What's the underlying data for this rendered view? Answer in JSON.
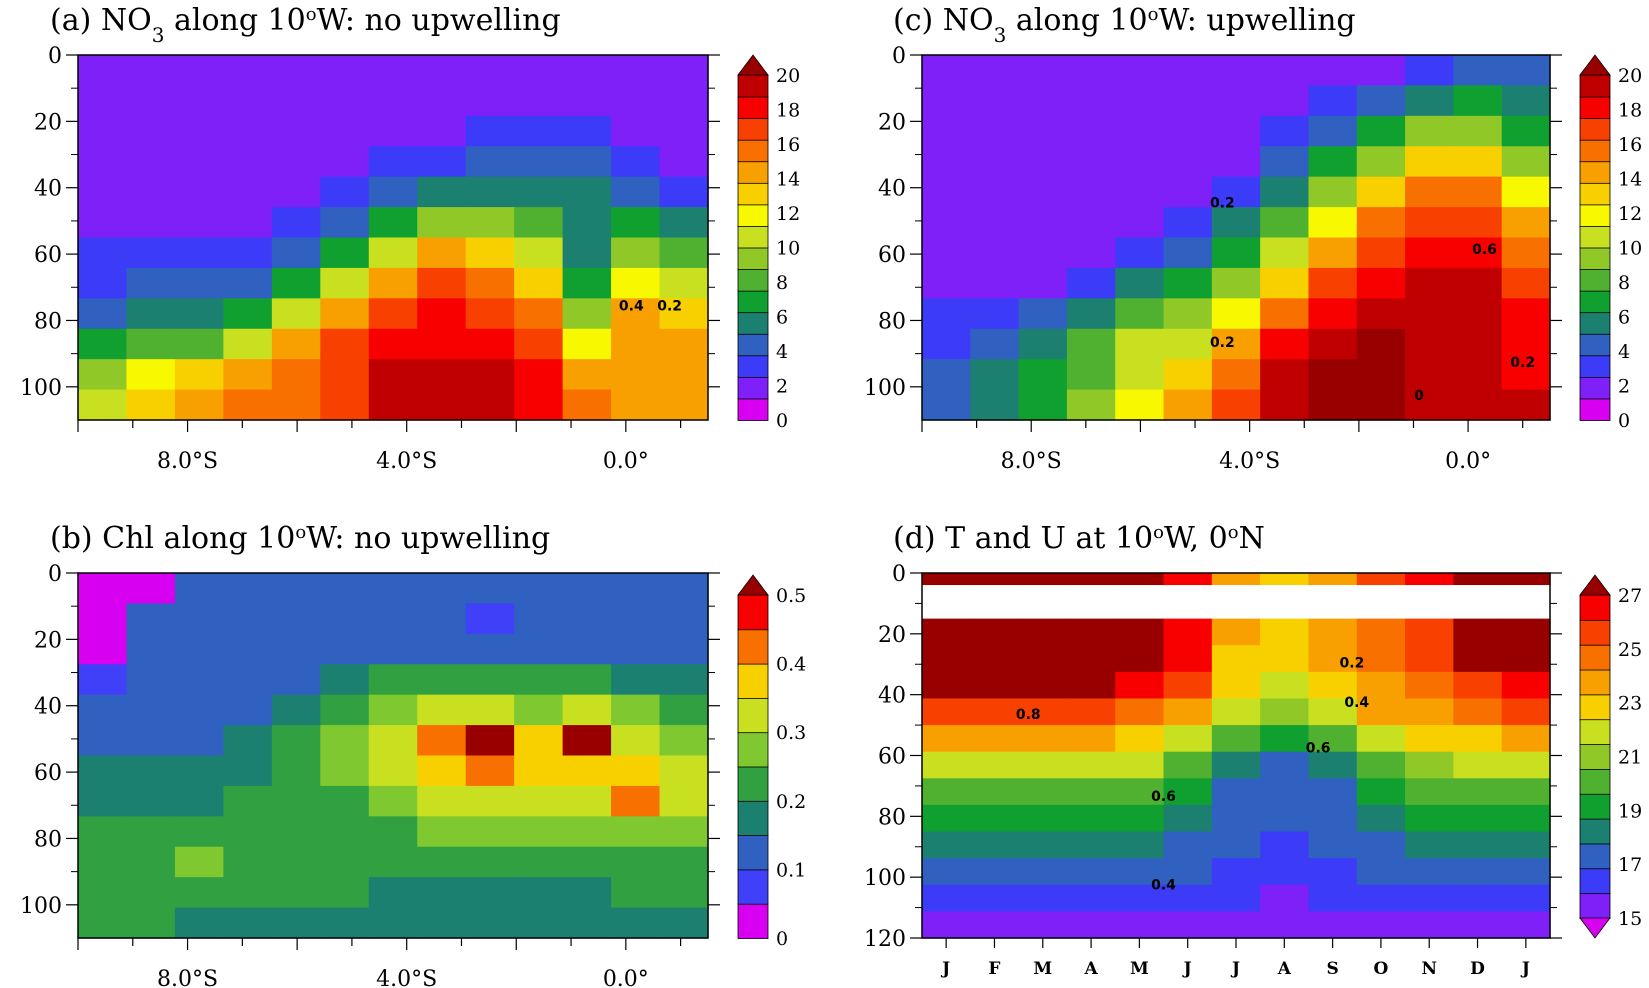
{
  "palettes": {
    "nutrient": [
      "#d800f0",
      "#8020f8",
      "#3c3cf8",
      "#3060c0",
      "#1c8070",
      "#10a030",
      "#50b030",
      "#90c828",
      "#c8e020",
      "#f8f800",
      "#f8d000",
      "#f8a000",
      "#f87000",
      "#f84000",
      "#f80000",
      "#c00000",
      "#980000"
    ],
    "chl": [
      "#d800f0",
      "#4040f8",
      "#3060c0",
      "#1c8070",
      "#30a040",
      "#80c830",
      "#c8e020",
      "#f8d000",
      "#f87000",
      "#f80000",
      "#980000"
    ],
    "temp": [
      "#d800f0",
      "#8020f8",
      "#3c3cf8",
      "#3060c0",
      "#1c8070",
      "#10a030",
      "#50b030",
      "#90c828",
      "#c8e020",
      "#f8d000",
      "#f8a000",
      "#f87000",
      "#f84000",
      "#f80000",
      "#980000"
    ]
  },
  "chart_data": [
    {
      "id": "a",
      "type": "heatmap",
      "title": "(a) NO3 along 10°W: no upwelling",
      "title_parts": {
        "pre": "(a) NO",
        "sub": "3",
        "mid": " along 10",
        "sup": "o",
        "post": "W: no upwelling"
      },
      "xlim": [
        -10,
        1.5
      ],
      "ylim": [
        0,
        110
      ],
      "y_inverted": true,
      "x_ticks": [
        "8.0°S",
        "4.0°S",
        "0.0°"
      ],
      "x_tick_values": [
        -8,
        -4,
        0
      ],
      "y_ticks": [
        "0",
        "20",
        "40",
        "60",
        "80",
        "100"
      ],
      "y_tick_values": [
        0,
        20,
        40,
        60,
        80,
        100
      ],
      "colorbar": {
        "labels": [
          "0",
          "2",
          "4",
          "6",
          "8",
          "10",
          "12",
          "14",
          "16",
          "18",
          "20"
        ],
        "palette": "nutrient",
        "triangle_top": true,
        "triangle_bottom": false
      },
      "contour_labels": [
        {
          "text": "0.4",
          "x": 0.1,
          "y": 77
        },
        {
          "text": "0.2",
          "x": 0.8,
          "y": 77
        }
      ],
      "color_index_grid": [
        [
          1,
          1,
          1,
          1,
          1,
          1,
          1,
          1,
          1,
          1,
          1,
          1,
          1
        ],
        [
          1,
          1,
          1,
          1,
          1,
          1,
          1,
          1,
          1,
          1,
          1,
          1,
          1
        ],
        [
          1,
          1,
          1,
          1,
          1,
          1,
          1,
          1,
          2,
          2,
          2,
          1,
          1
        ],
        [
          1,
          1,
          1,
          1,
          1,
          1,
          2,
          2,
          3,
          3,
          3,
          2,
          1
        ],
        [
          1,
          1,
          1,
          1,
          1,
          2,
          3,
          4,
          4,
          4,
          4,
          3,
          2
        ],
        [
          1,
          1,
          1,
          1,
          2,
          3,
          5,
          7,
          7,
          6,
          4,
          5,
          4
        ],
        [
          2,
          2,
          2,
          2,
          3,
          5,
          8,
          11,
          10,
          8,
          4,
          7,
          6
        ],
        [
          2,
          3,
          3,
          3,
          5,
          8,
          11,
          13,
          12,
          10,
          5,
          9,
          8
        ],
        [
          3,
          4,
          4,
          5,
          8,
          11,
          13,
          14,
          13,
          12,
          7,
          11,
          10
        ],
        [
          5,
          6,
          6,
          8,
          11,
          13,
          14,
          14,
          14,
          13,
          9,
          11,
          11
        ],
        [
          7,
          9,
          10,
          11,
          12,
          13,
          15,
          15,
          15,
          14,
          11,
          11,
          11
        ],
        [
          8,
          10,
          11,
          12,
          12,
          13,
          15,
          15,
          15,
          14,
          12,
          11,
          11
        ]
      ]
    },
    {
      "id": "c",
      "type": "heatmap",
      "title": "(c) NO3 along 10°W: upwelling",
      "title_parts": {
        "pre": "(c) NO",
        "sub": "3",
        "mid": " along 10",
        "sup": "o",
        "post": "W: upwelling"
      },
      "xlim": [
        -10,
        1.5
      ],
      "ylim": [
        0,
        110
      ],
      "y_inverted": true,
      "x_ticks": [
        "8.0°S",
        "4.0°S",
        "0.0°"
      ],
      "x_tick_values": [
        -8,
        -4,
        0
      ],
      "y_ticks": [
        "0",
        "20",
        "40",
        "60",
        "80",
        "100"
      ],
      "y_tick_values": [
        0,
        20,
        40,
        60,
        80,
        100
      ],
      "colorbar": {
        "labels": [
          "0",
          "2",
          "4",
          "6",
          "8",
          "10",
          "12",
          "14",
          "16",
          "18",
          "20"
        ],
        "palette": "nutrient",
        "triangle_top": true,
        "triangle_bottom": false
      },
      "contour_labels": [
        {
          "text": "0.2",
          "x": -4.5,
          "y": 46
        },
        {
          "text": "0.6",
          "x": 0.3,
          "y": 60
        },
        {
          "text": "0.2",
          "x": 1.0,
          "y": 94
        },
        {
          "text": "0.2",
          "x": -4.5,
          "y": 88
        },
        {
          "text": "0",
          "x": -0.9,
          "y": 104
        }
      ],
      "color_index_grid": [
        [
          1,
          1,
          1,
          1,
          1,
          1,
          1,
          1,
          1,
          1,
          2,
          3,
          3
        ],
        [
          1,
          1,
          1,
          1,
          1,
          1,
          1,
          1,
          2,
          3,
          4,
          5,
          4
        ],
        [
          1,
          1,
          1,
          1,
          1,
          1,
          1,
          2,
          3,
          5,
          7,
          7,
          5
        ],
        [
          1,
          1,
          1,
          1,
          1,
          1,
          1,
          3,
          5,
          7,
          10,
          10,
          7
        ],
        [
          1,
          1,
          1,
          1,
          1,
          1,
          2,
          4,
          7,
          10,
          12,
          12,
          9
        ],
        [
          1,
          1,
          1,
          1,
          1,
          2,
          4,
          6,
          9,
          12,
          13,
          13,
          11
        ],
        [
          1,
          1,
          1,
          1,
          2,
          3,
          5,
          8,
          11,
          13,
          14,
          14,
          12
        ],
        [
          1,
          1,
          1,
          2,
          4,
          5,
          7,
          10,
          13,
          14,
          15,
          15,
          13
        ],
        [
          2,
          2,
          3,
          4,
          6,
          7,
          9,
          12,
          14,
          15,
          15,
          15,
          14
        ],
        [
          2,
          3,
          4,
          6,
          8,
          8,
          11,
          14,
          15,
          16,
          15,
          15,
          14
        ],
        [
          3,
          4,
          5,
          6,
          8,
          10,
          12,
          15,
          16,
          16,
          15,
          15,
          14
        ],
        [
          3,
          4,
          5,
          7,
          9,
          11,
          13,
          15,
          16,
          16,
          15,
          15,
          15
        ]
      ]
    },
    {
      "id": "b",
      "type": "heatmap",
      "title": "(b) Chl along 10°W: no upwelling",
      "title_parts": {
        "pre": "(b) Chl along 10",
        "sub": "",
        "mid": "",
        "sup": "o",
        "post": "W: no upwelling"
      },
      "xlim": [
        -10,
        1.5
      ],
      "ylim": [
        0,
        110
      ],
      "y_inverted": true,
      "x_ticks": [
        "8.0°S",
        "4.0°S",
        "0.0°"
      ],
      "x_tick_values": [
        -8,
        -4,
        0
      ],
      "y_ticks": [
        "0",
        "20",
        "40",
        "60",
        "80",
        "100"
      ],
      "y_tick_values": [
        0,
        20,
        40,
        60,
        80,
        100
      ],
      "colorbar": {
        "labels": [
          "0",
          "0.1",
          "0.2",
          "0.3",
          "0.4",
          "0.5"
        ],
        "palette": "chl",
        "triangle_top": true,
        "triangle_bottom": false
      },
      "contour_labels": [],
      "color_index_grid": [
        [
          0,
          0,
          2,
          2,
          2,
          2,
          2,
          2,
          2,
          2,
          2,
          2,
          2
        ],
        [
          0,
          2,
          2,
          2,
          2,
          2,
          2,
          2,
          1,
          2,
          2,
          2,
          2
        ],
        [
          0,
          2,
          2,
          2,
          2,
          2,
          2,
          2,
          2,
          2,
          2,
          2,
          2
        ],
        [
          1,
          2,
          2,
          2,
          2,
          3,
          4,
          4,
          4,
          4,
          4,
          3,
          3
        ],
        [
          2,
          2,
          2,
          2,
          3,
          4,
          5,
          6,
          6,
          5,
          6,
          5,
          4
        ],
        [
          2,
          2,
          2,
          3,
          4,
          5,
          6,
          8,
          10,
          7,
          10,
          6,
          5
        ],
        [
          3,
          3,
          3,
          3,
          4,
          5,
          6,
          7,
          8,
          7,
          7,
          7,
          6
        ],
        [
          3,
          3,
          3,
          4,
          4,
          4,
          5,
          6,
          6,
          6,
          6,
          8,
          6
        ],
        [
          4,
          4,
          4,
          4,
          4,
          4,
          4,
          5,
          5,
          5,
          5,
          5,
          5
        ],
        [
          4,
          4,
          5,
          4,
          4,
          4,
          4,
          4,
          4,
          4,
          4,
          4,
          4
        ],
        [
          4,
          4,
          4,
          4,
          4,
          4,
          3,
          3,
          3,
          3,
          3,
          4,
          4
        ],
        [
          4,
          4,
          3,
          3,
          3,
          3,
          3,
          3,
          3,
          3,
          3,
          3,
          3
        ]
      ]
    },
    {
      "id": "d",
      "type": "heatmap",
      "title": "(d) T and U at 10°W, 0°N",
      "title_parts": {
        "pre": "(d) T and U at 10",
        "sub": "",
        "mid": "",
        "sup": "o",
        "post": "W, 0",
        "sup2": "o",
        "post2": "N"
      },
      "xlim": [
        0,
        13
      ],
      "ylim": [
        0,
        120
      ],
      "y_inverted": true,
      "x_ticks": [
        "J",
        "F",
        "M",
        "A",
        "M",
        "J",
        "J",
        "A",
        "S",
        "O",
        "N",
        "D",
        "J"
      ],
      "y_ticks": [
        "0",
        "20",
        "40",
        "60",
        "80",
        "100",
        "120"
      ],
      "y_tick_values": [
        0,
        20,
        40,
        60,
        80,
        100,
        120
      ],
      "colorbar": {
        "labels": [
          "15",
          "17",
          "19",
          "21",
          "23",
          "25",
          "27"
        ],
        "palette": "temp",
        "triangle_top": true,
        "triangle_bottom": true
      },
      "contour_labels": [
        {
          "text": "0.2",
          "x": 8.9,
          "y": 31
        },
        {
          "text": "0.4",
          "x": 9.0,
          "y": 44
        },
        {
          "text": "0.8",
          "x": 2.2,
          "y": 48
        },
        {
          "text": "0.6",
          "x": 8.2,
          "y": 59
        },
        {
          "text": "0.6",
          "x": 5.0,
          "y": 75
        },
        {
          "text": "0.4",
          "x": 5.0,
          "y": 104
        }
      ],
      "color_index_grid": [
        [
          14,
          14,
          14,
          14,
          14,
          13,
          10,
          9,
          10,
          11,
          12,
          14,
          14
        ],
        [
          14,
          14,
          14,
          14,
          14,
          13,
          9,
          9,
          10,
          11,
          12,
          14,
          14
        ],
        [
          14,
          14,
          14,
          14,
          13,
          12,
          9,
          8,
          9,
          10,
          11,
          12,
          13
        ],
        [
          12,
          12,
          12,
          12,
          11,
          10,
          8,
          7,
          8,
          10,
          10,
          11,
          12
        ],
        [
          10,
          10,
          10,
          10,
          9,
          8,
          6,
          5,
          6,
          8,
          9,
          9,
          10
        ],
        [
          8,
          8,
          8,
          8,
          8,
          6,
          4,
          3,
          4,
          6,
          7,
          8,
          8
        ],
        [
          6,
          6,
          6,
          6,
          6,
          5,
          3,
          3,
          3,
          5,
          6,
          6,
          6
        ],
        [
          5,
          5,
          5,
          5,
          5,
          4,
          3,
          3,
          3,
          4,
          5,
          5,
          5
        ],
        [
          4,
          4,
          4,
          4,
          4,
          3,
          3,
          2,
          3,
          3,
          4,
          4,
          4
        ],
        [
          3,
          3,
          3,
          3,
          3,
          3,
          2,
          2,
          2,
          3,
          3,
          3,
          3
        ],
        [
          2,
          2,
          2,
          2,
          2,
          2,
          2,
          1,
          2,
          2,
          2,
          2,
          2
        ],
        [
          1,
          1,
          1,
          1,
          1,
          1,
          1,
          1,
          1,
          1,
          1,
          1,
          1
        ]
      ],
      "surface_band": [
        14,
        14,
        14,
        14,
        14,
        13,
        10,
        9,
        10,
        12,
        13,
        14,
        14
      ]
    }
  ]
}
